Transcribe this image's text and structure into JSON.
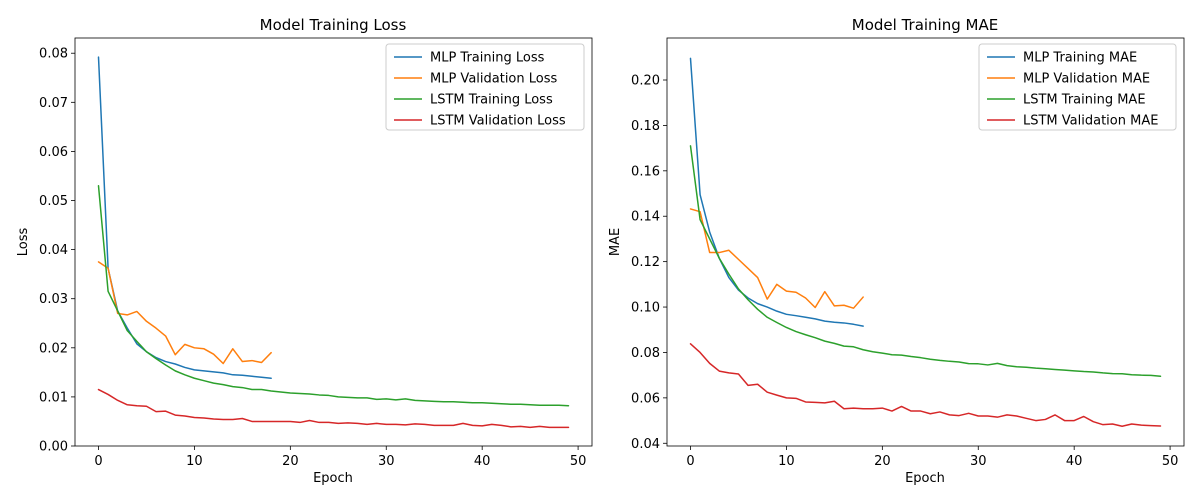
{
  "chart_data": [
    {
      "type": "line",
      "title": "Model Training Loss",
      "xlabel": "Epoch",
      "ylabel": "Loss",
      "xlim": [
        -2.45,
        51.45
      ],
      "ylim": [
        0.0,
        0.0831
      ],
      "xticks": [
        0,
        10,
        20,
        30,
        40,
        50
      ],
      "xtick_labels": [
        "0",
        "10",
        "20",
        "30",
        "40",
        "50"
      ],
      "yticks": [
        0.0,
        0.01,
        0.02,
        0.03,
        0.04,
        0.05,
        0.06,
        0.07,
        0.08
      ],
      "ytick_labels": [
        "0.00",
        "0.01",
        "0.02",
        "0.03",
        "0.04",
        "0.05",
        "0.06",
        "0.07",
        "0.08"
      ],
      "grid": false,
      "legend_position": "top-right",
      "series": [
        {
          "name": "MLP Training Loss",
          "color": "#1f77b4",
          "x": [
            0,
            1,
            2,
            3,
            4,
            5,
            6,
            7,
            8,
            9,
            10,
            11,
            12,
            13,
            14,
            15,
            16,
            17,
            18
          ],
          "values": [
            0.0792,
            0.0362,
            0.0275,
            0.024,
            0.0208,
            0.0192,
            0.018,
            0.0172,
            0.0167,
            0.016,
            0.0155,
            0.0153,
            0.0151,
            0.0149,
            0.0145,
            0.0144,
            0.0142,
            0.014,
            0.0138
          ]
        },
        {
          "name": "MLP Validation Loss",
          "color": "#ff7f0e",
          "x": [
            0,
            1,
            2,
            3,
            4,
            5,
            6,
            7,
            8,
            9,
            10,
            11,
            12,
            13,
            14,
            15,
            16,
            17,
            18
          ],
          "values": [
            0.0375,
            0.0362,
            0.027,
            0.0267,
            0.0274,
            0.0254,
            0.024,
            0.0224,
            0.0186,
            0.0207,
            0.02,
            0.0198,
            0.0187,
            0.0168,
            0.0198,
            0.0172,
            0.0174,
            0.017,
            0.019
          ]
        },
        {
          "name": "LSTM Training Loss",
          "color": "#2ca02c",
          "x": [
            0,
            1,
            2,
            3,
            4,
            5,
            6,
            7,
            8,
            9,
            10,
            11,
            12,
            13,
            14,
            15,
            16,
            17,
            18,
            19,
            20,
            21,
            22,
            23,
            24,
            25,
            26,
            27,
            28,
            29,
            30,
            31,
            32,
            33,
            34,
            35,
            36,
            37,
            38,
            39,
            40,
            41,
            42,
            43,
            44,
            45,
            46,
            47,
            48,
            49
          ],
          "values": [
            0.053,
            0.0315,
            0.0275,
            0.0235,
            0.0213,
            0.0192,
            0.0178,
            0.0165,
            0.0153,
            0.0145,
            0.0138,
            0.0133,
            0.0128,
            0.0125,
            0.0121,
            0.0119,
            0.0115,
            0.0115,
            0.0112,
            0.011,
            0.0108,
            0.0107,
            0.0106,
            0.0104,
            0.0103,
            0.01,
            0.0099,
            0.0098,
            0.0098,
            0.0095,
            0.0096,
            0.0094,
            0.0096,
            0.0093,
            0.0092,
            0.0091,
            0.009,
            0.009,
            0.0089,
            0.0088,
            0.0088,
            0.0087,
            0.0086,
            0.0085,
            0.0085,
            0.0084,
            0.0083,
            0.0083,
            0.0083,
            0.0082
          ]
        },
        {
          "name": "LSTM Validation Loss",
          "color": "#d62728",
          "x": [
            0,
            1,
            2,
            3,
            4,
            5,
            6,
            7,
            8,
            9,
            10,
            11,
            12,
            13,
            14,
            15,
            16,
            17,
            18,
            19,
            20,
            21,
            22,
            23,
            24,
            25,
            26,
            27,
            28,
            29,
            30,
            31,
            32,
            33,
            34,
            35,
            36,
            37,
            38,
            39,
            40,
            41,
            42,
            43,
            44,
            45,
            46,
            47,
            48,
            49
          ],
          "values": [
            0.0115,
            0.0105,
            0.0093,
            0.0084,
            0.0082,
            0.0081,
            0.007,
            0.0071,
            0.0063,
            0.0061,
            0.0058,
            0.0057,
            0.0055,
            0.0054,
            0.0054,
            0.0056,
            0.005,
            0.005,
            0.005,
            0.005,
            0.005,
            0.0048,
            0.0052,
            0.0048,
            0.0048,
            0.0046,
            0.0047,
            0.0046,
            0.0044,
            0.0046,
            0.0044,
            0.0044,
            0.0043,
            0.0045,
            0.0044,
            0.0042,
            0.0042,
            0.0042,
            0.0046,
            0.0042,
            0.0041,
            0.0044,
            0.0042,
            0.0039,
            0.004,
            0.0038,
            0.004,
            0.0038,
            0.0038,
            0.0038
          ]
        }
      ]
    },
    {
      "type": "line",
      "title": "Model Training MAE",
      "xlabel": "Epoch",
      "ylabel": "MAE",
      "xlim": [
        -2.45,
        51.45
      ],
      "ylim": [
        0.0388,
        0.2185
      ],
      "xticks": [
        0,
        10,
        20,
        30,
        40,
        50
      ],
      "xtick_labels": [
        "0",
        "10",
        "20",
        "30",
        "40",
        "50"
      ],
      "yticks": [
        0.04,
        0.06,
        0.08,
        0.1,
        0.12,
        0.14,
        0.16,
        0.18,
        0.2
      ],
      "ytick_labels": [
        "0.04",
        "0.06",
        "0.08",
        "0.10",
        "0.12",
        "0.14",
        "0.16",
        "0.18",
        "0.20"
      ],
      "grid": false,
      "legend_position": "top-right",
      "series": [
        {
          "name": "MLP Training MAE",
          "color": "#1f77b4",
          "x": [
            0,
            1,
            2,
            3,
            4,
            5,
            6,
            7,
            8,
            9,
            10,
            11,
            12,
            13,
            14,
            15,
            16,
            17,
            18
          ],
          "values": [
            0.2095,
            0.1495,
            0.133,
            0.1215,
            0.113,
            0.1075,
            0.104,
            0.1015,
            0.1,
            0.0982,
            0.0968,
            0.0962,
            0.0955,
            0.0948,
            0.0938,
            0.0933,
            0.093,
            0.0924,
            0.0916
          ]
        },
        {
          "name": "MLP Validation MAE",
          "color": "#ff7f0e",
          "x": [
            0,
            1,
            2,
            3,
            4,
            5,
            6,
            7,
            8,
            9,
            10,
            11,
            12,
            13,
            14,
            15,
            16,
            17,
            18
          ],
          "values": [
            0.1432,
            0.142,
            0.124,
            0.124,
            0.125,
            0.121,
            0.117,
            0.113,
            0.1035,
            0.11,
            0.107,
            0.1065,
            0.104,
            0.0998,
            0.1068,
            0.1005,
            0.1008,
            0.0995,
            0.1044
          ]
        },
        {
          "name": "LSTM Training MAE",
          "color": "#2ca02c",
          "x": [
            0,
            1,
            2,
            3,
            4,
            5,
            6,
            7,
            8,
            9,
            10,
            11,
            12,
            13,
            14,
            15,
            16,
            17,
            18,
            19,
            20,
            21,
            22,
            23,
            24,
            25,
            26,
            27,
            28,
            29,
            30,
            31,
            32,
            33,
            34,
            35,
            36,
            37,
            38,
            39,
            40,
            41,
            42,
            43,
            44,
            45,
            46,
            47,
            48,
            49
          ],
          "values": [
            0.171,
            0.1385,
            0.13,
            0.1215,
            0.1145,
            0.108,
            0.1032,
            0.099,
            0.0955,
            0.0932,
            0.091,
            0.0892,
            0.0878,
            0.0865,
            0.085,
            0.084,
            0.0828,
            0.0825,
            0.0812,
            0.0803,
            0.0797,
            0.079,
            0.0788,
            0.0782,
            0.0777,
            0.077,
            0.0765,
            0.0761,
            0.0758,
            0.0751,
            0.075,
            0.0745,
            0.0752,
            0.0742,
            0.0737,
            0.0735,
            0.0731,
            0.0728,
            0.0725,
            0.0722,
            0.0719,
            0.0716,
            0.0714,
            0.071,
            0.0707,
            0.0706,
            0.0702,
            0.07,
            0.0699,
            0.0695
          ]
        },
        {
          "name": "LSTM Validation MAE",
          "color": "#d62728",
          "x": [
            0,
            1,
            2,
            3,
            4,
            5,
            6,
            7,
            8,
            9,
            10,
            11,
            12,
            13,
            14,
            15,
            16,
            17,
            18,
            19,
            20,
            21,
            22,
            23,
            24,
            25,
            26,
            27,
            28,
            29,
            30,
            31,
            32,
            33,
            34,
            35,
            36,
            37,
            38,
            39,
            40,
            41,
            42,
            43,
            44,
            45,
            46,
            47,
            48,
            49
          ],
          "values": [
            0.0838,
            0.08,
            0.0752,
            0.0718,
            0.071,
            0.0705,
            0.0655,
            0.066,
            0.0625,
            0.0612,
            0.06,
            0.0598,
            0.0582,
            0.058,
            0.0578,
            0.0585,
            0.0552,
            0.0555,
            0.0552,
            0.0552,
            0.0555,
            0.0542,
            0.0562,
            0.0542,
            0.0542,
            0.053,
            0.0538,
            0.0525,
            0.0522,
            0.0532,
            0.052,
            0.052,
            0.0515,
            0.0525,
            0.052,
            0.051,
            0.05,
            0.0505,
            0.0525,
            0.05,
            0.05,
            0.0518,
            0.0495,
            0.0482,
            0.0485,
            0.0475,
            0.0485,
            0.048,
            0.0478,
            0.0476
          ]
        }
      ]
    }
  ]
}
